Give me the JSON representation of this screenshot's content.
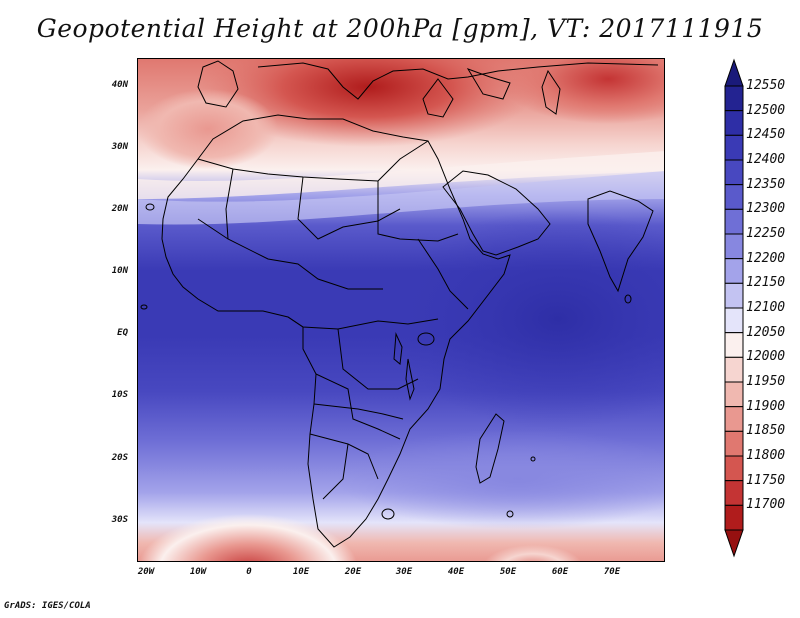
{
  "title": "Geopotential Height at 200hPa [gpm], VT: 2017111915",
  "lat_ticks": [
    "40N",
    "30N",
    "20N",
    "10N",
    "EQ",
    "10S",
    "20S",
    "30S"
  ],
  "lon_ticks": [
    "20W",
    "10W",
    "0",
    "10E",
    "20E",
    "30E",
    "40E",
    "50E",
    "60E",
    "70E"
  ],
  "colorbar": {
    "labels": [
      "12550",
      "12500",
      "12450",
      "12400",
      "12350",
      "12300",
      "12250",
      "12200",
      "12150",
      "12100",
      "12050",
      "12000",
      "11950",
      "11900",
      "11850",
      "11800",
      "11750",
      "11700"
    ],
    "colors": [
      "#1a1a7a",
      "#232391",
      "#2e2ea6",
      "#3a3ab5",
      "#4848c0",
      "#5a5acb",
      "#6f6fd6",
      "#8787e0",
      "#a3a3ea",
      "#c3c3f2",
      "#e4e4fa",
      "#fbf0ee",
      "#f6d5d0",
      "#f0b8b0",
      "#e99890",
      "#e07870",
      "#d45650",
      "#c43434",
      "#b01c1c",
      "#961010"
    ]
  },
  "footer": "GrADS: IGES/COLA"
}
